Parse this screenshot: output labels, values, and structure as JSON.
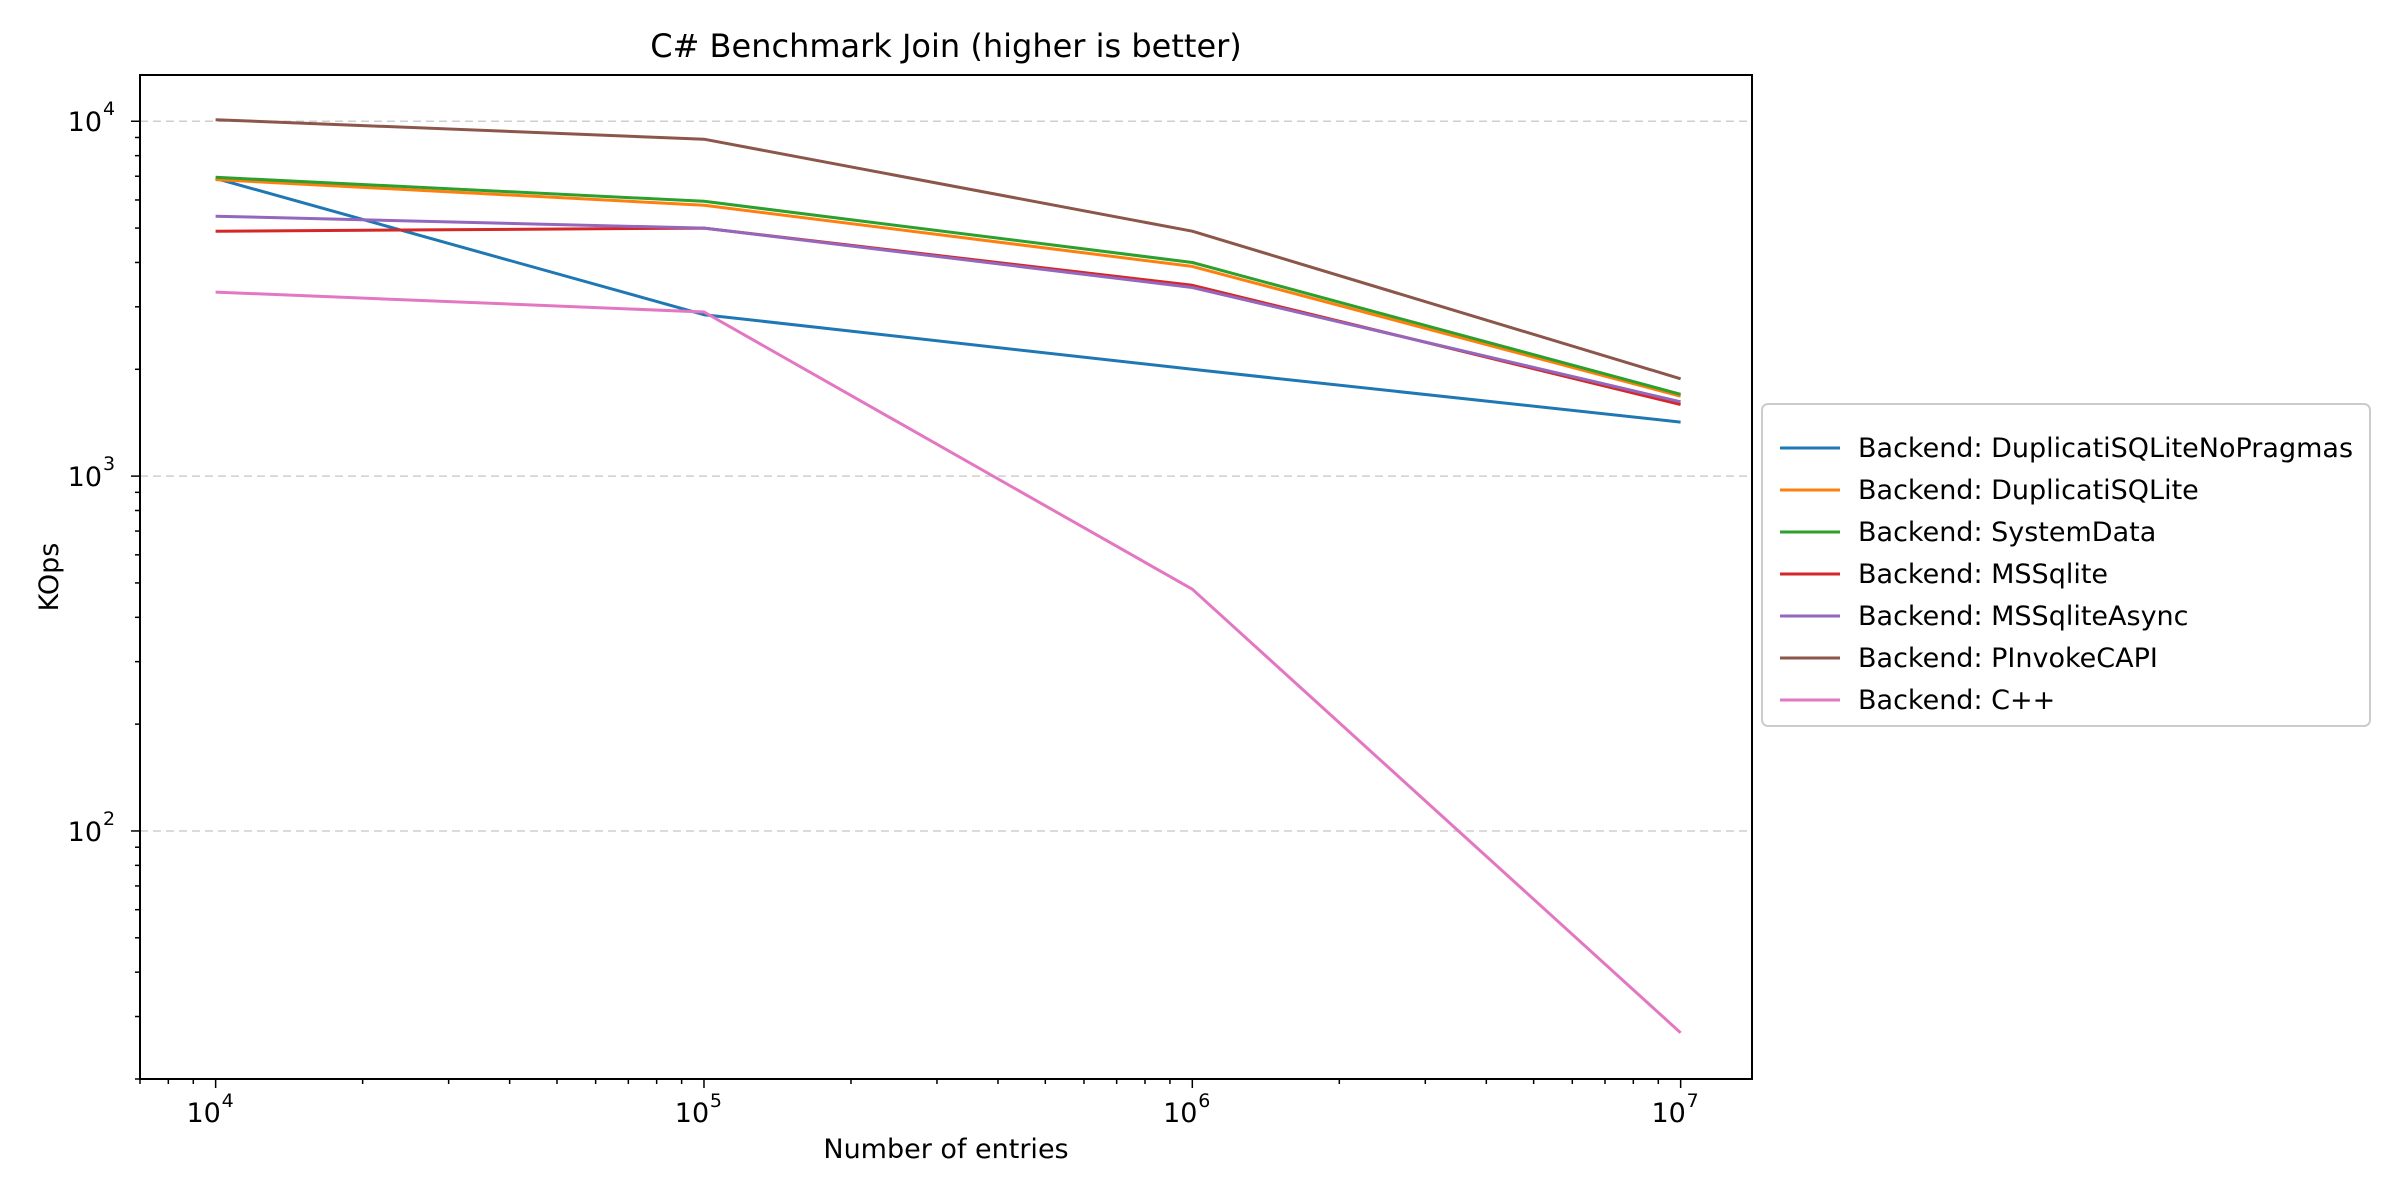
{
  "chart_data": {
    "type": "line",
    "title": "C# Benchmark Join (higher is better)",
    "xlabel": "Number of entries",
    "ylabel": "KOps",
    "x_scale": "log",
    "y_scale": "log",
    "xlim": [
      7000,
      14000000
    ],
    "ylim": [
      20,
      13500
    ],
    "x_ticks": [
      10000,
      100000,
      1000000,
      10000000
    ],
    "x_tick_labels": [
      {
        "base": "10",
        "exp": "4"
      },
      {
        "base": "10",
        "exp": "5"
      },
      {
        "base": "10",
        "exp": "6"
      },
      {
        "base": "10",
        "exp": "7"
      }
    ],
    "y_ticks": [
      100,
      1000,
      10000
    ],
    "y_tick_labels": [
      {
        "base": "10",
        "exp": "2"
      },
      {
        "base": "10",
        "exp": "3"
      },
      {
        "base": "10",
        "exp": "4"
      }
    ],
    "grid": "y-major-dashed",
    "legend_position": "center-right-outside",
    "x": [
      10000,
      100000,
      1000000,
      10000000
    ],
    "series": [
      {
        "name": "Backend: DuplicatiSQLiteNoPragmas",
        "color": "#1f77b4",
        "values": [
          6900,
          2850,
          2000,
          1420
        ]
      },
      {
        "name": "Backend: DuplicatiSQLite",
        "color": "#ff7f0e",
        "values": [
          6850,
          5800,
          3900,
          1680
        ]
      },
      {
        "name": "Backend: SystemData",
        "color": "#2ca02c",
        "values": [
          6950,
          5950,
          4000,
          1700
        ]
      },
      {
        "name": "Backend: MSSqlite",
        "color": "#d62728",
        "values": [
          4900,
          5000,
          3450,
          1590
        ]
      },
      {
        "name": "Backend: MSSqliteAsync",
        "color": "#9467bd",
        "values": [
          5400,
          5000,
          3400,
          1620
        ]
      },
      {
        "name": "Backend: PInvokeCAPI",
        "color": "#8c564b",
        "values": [
          10100,
          8900,
          4900,
          1880
        ]
      },
      {
        "name": "Backend: C++",
        "color": "#e377c2",
        "values": [
          3300,
          2900,
          480,
          27
        ]
      }
    ]
  }
}
